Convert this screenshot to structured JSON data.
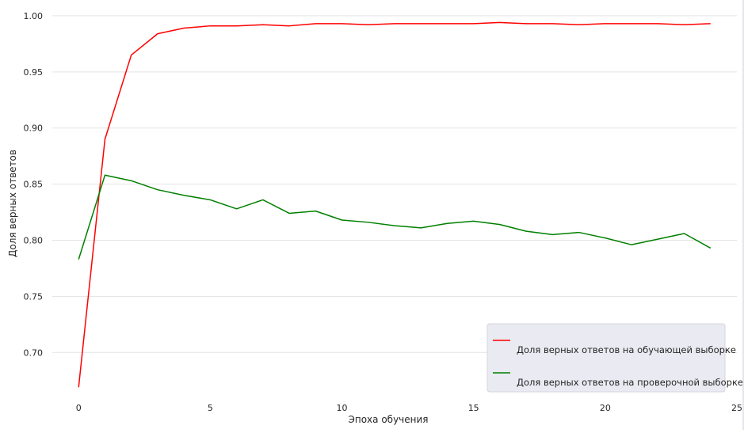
{
  "chart_data": {
    "type": "line",
    "xlabel": "Эпоха обучения",
    "ylabel": "Доля верных ответов",
    "xlim": [
      -1,
      25
    ],
    "ylim": [
      0.66,
      1.007
    ],
    "xticks": [
      0,
      5,
      10,
      15,
      20,
      25
    ],
    "xtick_labels": [
      "0",
      "5",
      "10",
      "15",
      "20",
      "25"
    ],
    "yticks": [
      0.7,
      0.75,
      0.8,
      0.85,
      0.9,
      0.95,
      1.0
    ],
    "ytick_labels": [
      "0.70",
      "0.75",
      "0.80",
      "0.85",
      "0.90",
      "0.95",
      "1.00"
    ],
    "grid": "horizontal",
    "legend_position": "lower-right",
    "x": [
      0,
      1,
      2,
      3,
      4,
      5,
      6,
      7,
      8,
      9,
      10,
      11,
      12,
      13,
      14,
      15,
      16,
      17,
      18,
      19,
      20,
      21,
      22,
      23,
      24
    ],
    "series": [
      {
        "name": "Доля верных ответов на обучающей выборке",
        "color": "#ff0000",
        "values": [
          0.669,
          0.89,
          0.965,
          0.984,
          0.989,
          0.991,
          0.991,
          0.992,
          0.991,
          0.993,
          0.993,
          0.992,
          0.993,
          0.993,
          0.993,
          0.993,
          0.994,
          0.993,
          0.993,
          0.992,
          0.993,
          0.993,
          0.993,
          0.992,
          0.993
        ]
      },
      {
        "name": "Доля верных ответов на проверочной выборке",
        "color": "#008000",
        "values": [
          0.783,
          0.858,
          0.853,
          0.845,
          0.84,
          0.836,
          0.828,
          0.836,
          0.824,
          0.826,
          0.818,
          0.816,
          0.813,
          0.811,
          0.815,
          0.817,
          0.814,
          0.808,
          0.805,
          0.807,
          0.802,
          0.796,
          0.801,
          0.806,
          0.793
        ]
      }
    ]
  }
}
